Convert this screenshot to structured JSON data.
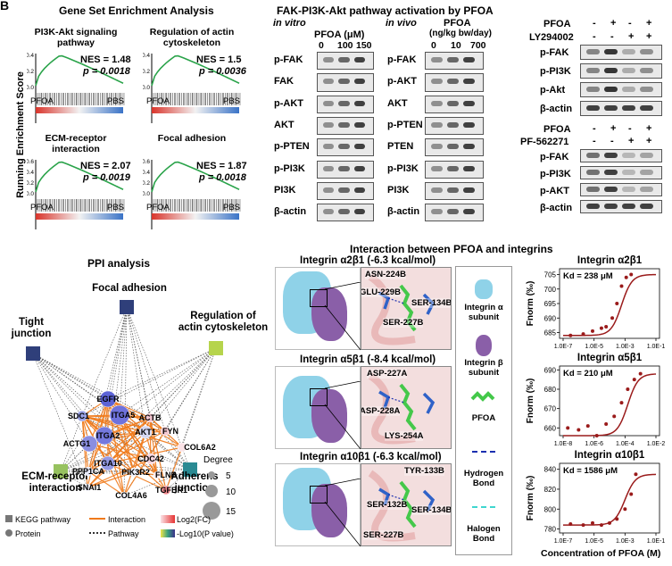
{
  "panel_letter": "B",
  "gsea": {
    "title": "Gene Set Enrichment Analysis",
    "ylabel": "Running Enrichment Score",
    "left_label": "PFOA",
    "right_label": "PBS",
    "plots": [
      {
        "name": "PI3K-Akt signaling pathway",
        "nes": "NES = 1.48",
        "p": "p = 0.0018",
        "yticks": [
          "0.4",
          "0.2",
          "0.0"
        ]
      },
      {
        "name": "Regulation of actin cytoskeleton",
        "nes": "NES = 1.5",
        "p": "p = 0.0036",
        "yticks": [
          "0.4",
          "0.2",
          "0.0"
        ]
      },
      {
        "name": "ECM-receptor interaction",
        "nes": "NES = 2.07",
        "p": "p = 0.0019",
        "yticks": [
          "0.6",
          "0.4",
          "0.2",
          "0.0"
        ]
      },
      {
        "name": "Focal adhesion",
        "nes": "NES = 1.87",
        "p": "p = 0.0018",
        "yticks": [
          "0.6",
          "0.4",
          "0.2",
          "0.0"
        ]
      }
    ]
  },
  "wb": {
    "title": "FAK-PI3K-Akt pathway activation by PFOA",
    "invitro": {
      "label": "in vitro",
      "header": "PFOA (μM)",
      "doses": [
        "0",
        "100",
        "150"
      ],
      "proteins": [
        "p-FAK",
        "FAK",
        "p-AKT",
        "AKT",
        "p-PTEN",
        "p-PI3K",
        "PI3K",
        "β-actin"
      ]
    },
    "invivo": {
      "label": "in vivo",
      "header": "PFOA",
      "header2": "(ng/kg bw/day)",
      "doses": [
        "0",
        "10",
        "700"
      ],
      "proteins": [
        "p-FAK",
        "p-AKT",
        "AKT",
        "p-PTEN",
        "PTEN",
        "p-PI3K",
        "PI3K",
        "β-actin"
      ]
    },
    "ly": {
      "row1": "PFOA",
      "row2": "LY294002",
      "signs1": [
        "-",
        "+",
        "-",
        "+"
      ],
      "signs2": [
        "-",
        "-",
        "+",
        "+"
      ],
      "proteins": [
        "p-FAK",
        "p-PI3K",
        "p-Akt",
        "β-actin"
      ]
    },
    "pf": {
      "row1": "PFOA",
      "row2": "PF-562271",
      "signs1": [
        "-",
        "+",
        "-",
        "+"
      ],
      "signs2": [
        "-",
        "-",
        "+",
        "+"
      ],
      "proteins": [
        "p-FAK",
        "p-PI3K",
        "p-AKT",
        "β-actin"
      ]
    }
  },
  "ppi": {
    "title": "PPI analysis",
    "pathways": [
      "Focal adhesion",
      "Tight junction",
      "Regulation of actin cytoskeleton",
      "ECM-receptor interaction",
      "Adherens junction"
    ],
    "proteins": [
      "EGFR",
      "ACTB",
      "SDC1",
      "ITGA5",
      "FYN",
      "AKT1",
      "COL6A2",
      "ACTG1",
      "ITGA2",
      "CDC42",
      "ITGA10",
      "FLNB",
      "PPP1CA",
      "PIK3R2",
      "TGFBR1",
      "SNAI1",
      "COL4A6"
    ],
    "degree_title": "Degree",
    "degree_values": [
      "5",
      "10",
      "15"
    ],
    "legend": {
      "kegg": "KEGG pathway",
      "protein": "Protein",
      "interaction": "Interaction",
      "pathway": "Pathway",
      "log2fc": "Log2(FC)",
      "pval": "-Log10(P value)"
    }
  },
  "docking": {
    "title": "Interaction between PFOA and integrins",
    "rows": [
      {
        "title": "Integrin α2β1 (-6.3 kcal/mol)",
        "residues": [
          "ASN-224B",
          "GLU-229B",
          "SER-134B",
          "SER-227B"
        ]
      },
      {
        "title": "Integrin α5β1 (-8.4 kcal/mol)",
        "residues": [
          "ASP-227A",
          "ASP-228A",
          "LYS-254A"
        ]
      },
      {
        "title": "Integrin α10β1 (-6.3 kcal/mol)",
        "residues": [
          "TYR-133B",
          "SER-132B",
          "SER-134B",
          "SER-227B"
        ]
      }
    ],
    "legend": [
      "Integrin α subunit",
      "Integrin β subunit",
      "PFOA",
      "Hydrogen Bond",
      "Halogen Bond"
    ]
  },
  "mst": {
    "ylabel": "Fnorm (‰)",
    "xlabel": "Concentration of PFOA (M)"
  },
  "chart_data": [
    {
      "type": "scatter",
      "title": "Integrin α2β1",
      "annotation": "Kd = 238 μM",
      "ylabel": "Fnorm (‰)",
      "xscale": "log",
      "xticks": [
        "1.0E-7",
        "1.0E-5",
        "1.0E-3",
        "1.0E-1"
      ],
      "yticks": [
        "685",
        "690",
        "695",
        "700",
        "705"
      ],
      "ylim": [
        683,
        707
      ],
      "x": [
        3e-07,
        2e-06,
        8e-06,
        3e-05,
        6e-05,
        0.00015,
        0.0003,
        0.0006,
        0.0012,
        0.0025
      ],
      "y": [
        684,
        684.5,
        685.5,
        686.5,
        687,
        690,
        695,
        701,
        704,
        705
      ]
    },
    {
      "type": "scatter",
      "title": "Integrin α5β1",
      "annotation": "Kd = 210 μM",
      "ylabel": "Fnorm (‰)",
      "xscale": "log",
      "xticks": [
        "1.0E-8",
        "1.0E-6",
        "1.0E-4",
        "1.0E-2"
      ],
      "yticks": [
        "660",
        "670",
        "680",
        "690"
      ],
      "ylim": [
        656,
        692
      ],
      "x": [
        2e-08,
        1e-07,
        4e-07,
        1.5e-06,
        6e-06,
        2e-05,
        6e-05,
        0.00015,
        0.0004,
        0.001
      ],
      "y": [
        660,
        659,
        661,
        656,
        662,
        666,
        673,
        680,
        685,
        688
      ]
    },
    {
      "type": "scatter",
      "title": "Integrin α10β1",
      "annotation": "Kd = 1586 μM",
      "ylabel": "Fnorm (‰)",
      "xscale": "log",
      "xticks": [
        "1.0E-7",
        "1.0E-5",
        "1.0E-3",
        "1.0E-1"
      ],
      "yticks": [
        "780",
        "800",
        "820",
        "840"
      ],
      "ylim": [
        776,
        846
      ],
      "x": [
        3e-07,
        2e-06,
        8e-06,
        3e-05,
        0.0001,
        0.0003,
        0.001,
        0.0025,
        0.005
      ],
      "y": [
        785,
        784,
        786,
        784,
        786,
        790,
        800,
        815,
        835
      ]
    }
  ]
}
